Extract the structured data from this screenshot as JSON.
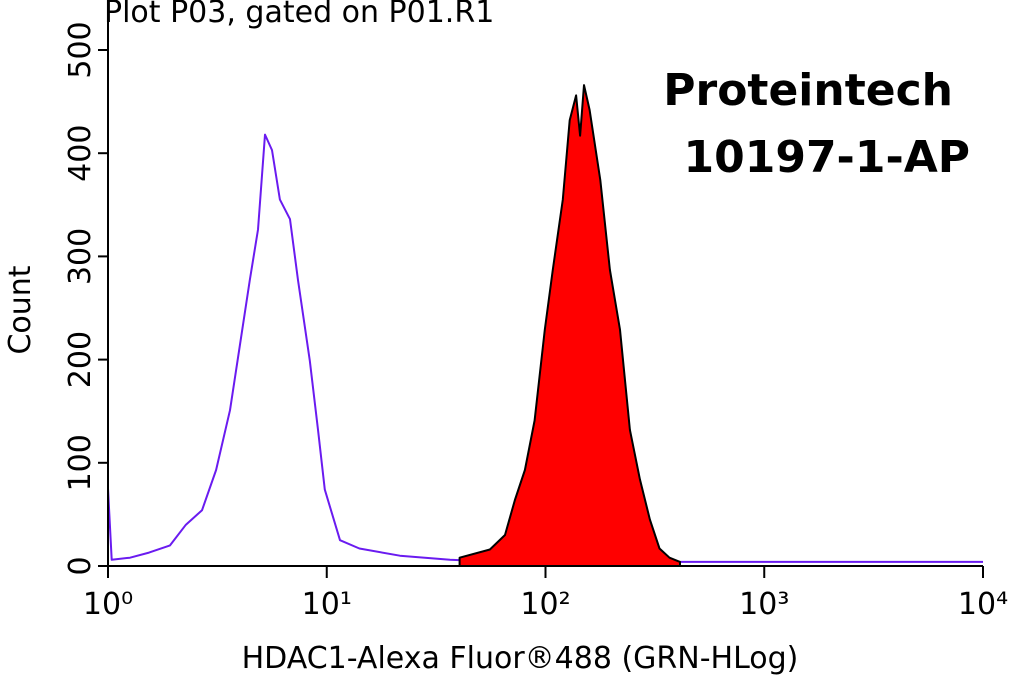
{
  "chart_data": {
    "type": "histogram-overlay",
    "title": "Plot P03, gated on P01.R1",
    "xlabel": "HDAC1-Alexa Fluor®488 (GRN-HLog)",
    "ylabel": "Count",
    "annotations": [
      "Proteintech",
      "10197-1-AP"
    ],
    "xscale": "log",
    "xlim": [
      1,
      10000
    ],
    "xticks": [
      {
        "value": 1,
        "label": "10⁰"
      },
      {
        "value": 10,
        "label": "10¹"
      },
      {
        "value": 100,
        "label": "10²"
      },
      {
        "value": 1000,
        "label": "10³"
      },
      {
        "value": 10000,
        "label": "10⁴"
      }
    ],
    "ylim": [
      0,
      500
    ],
    "yticks": [
      0,
      100,
      200,
      300,
      400,
      500
    ],
    "series": [
      {
        "color": "#6a1bf0",
        "filled": false,
        "x": [
          1,
          1.04,
          1.26,
          1.54,
          1.92,
          2.27,
          2.69,
          3.12,
          3.61,
          4.01,
          4.45,
          4.85,
          5.22,
          5.62,
          6.11,
          6.79,
          7.39,
          8.37,
          9.12,
          9.8,
          11.5,
          14.1,
          21.6,
          36.6,
          62,
          178,
          1450,
          10000
        ],
        "values": [
          75,
          6,
          8,
          13,
          20,
          40,
          54,
          93,
          151,
          214,
          277,
          326,
          418,
          403,
          355,
          336,
          277,
          199,
          132,
          74,
          25,
          17,
          10,
          6,
          4,
          4,
          4,
          4
        ]
      },
      {
        "color": "#ff0000",
        "edgecolor": "#000000",
        "filled": true,
        "x": [
          40.5,
          55.7,
          65.3,
          72.5,
          80.5,
          89.2,
          99.3,
          108,
          120,
          129,
          138,
          144,
          150,
          159,
          178,
          197,
          219,
          243,
          270,
          300,
          332,
          369,
          412
        ],
        "values": [
          8,
          16,
          30,
          64,
          93,
          141,
          229,
          287,
          355,
          432,
          456,
          417,
          466,
          442,
          374,
          287,
          229,
          132,
          84,
          45,
          17,
          8,
          4
        ]
      }
    ]
  }
}
